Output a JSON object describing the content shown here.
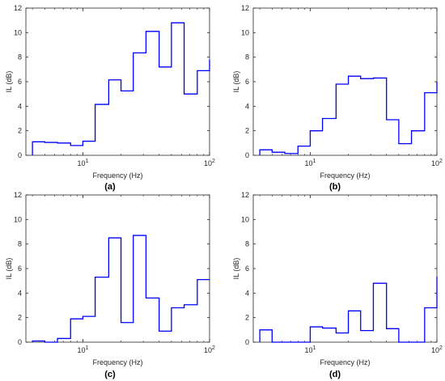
{
  "chart_data": [
    {
      "type": "line",
      "panel_label": "(a)",
      "xlabel": "Frequency (Hz)",
      "ylabel": "IL (dB)",
      "xscale": "log",
      "xlim": [
        3.55,
        100
      ],
      "ylim": [
        0,
        12
      ],
      "yticks": [
        0,
        2,
        4,
        6,
        8,
        10,
        12
      ],
      "xticks": [
        {
          "value": 10,
          "label": "10¹"
        },
        {
          "value": 100,
          "label": "10²"
        }
      ],
      "series": [
        {
          "edges": [
            4,
            5,
            6.3,
            8,
            10,
            12.5,
            16,
            20,
            25,
            31.5,
            40,
            50,
            63,
            80,
            100
          ],
          "values": [
            1.1,
            1.05,
            1.0,
            0.8,
            1.15,
            4.15,
            6.15,
            5.25,
            8.35,
            10.1,
            7.2,
            10.8,
            5.0,
            6.9,
            7.8
          ]
        }
      ]
    },
    {
      "type": "line",
      "panel_label": "(b)",
      "xlabel": "Frequency (Hz)",
      "ylabel": "IL (dB)",
      "xscale": "log",
      "xlim": [
        3.55,
        100
      ],
      "ylim": [
        0,
        12
      ],
      "yticks": [
        0,
        2,
        4,
        6,
        8,
        10,
        12
      ],
      "xticks": [
        {
          "value": 10,
          "label": "10¹"
        },
        {
          "value": 100,
          "label": "10²"
        }
      ],
      "series": [
        {
          "edges": [
            4,
            5,
            6.3,
            8,
            10,
            12.5,
            16,
            20,
            25,
            31.5,
            40,
            50,
            63,
            80,
            100
          ],
          "values": [
            0.45,
            0.25,
            0.15,
            0.75,
            2.0,
            3.0,
            5.8,
            6.45,
            6.25,
            6.3,
            2.9,
            0.95,
            2.0,
            5.1,
            6.0
          ]
        }
      ]
    },
    {
      "type": "line",
      "panel_label": "(c)",
      "xlabel": "Frequency (Hz)",
      "ylabel": "IL (dB)",
      "xscale": "log",
      "xlim": [
        3.55,
        100
      ],
      "ylim": [
        0,
        12
      ],
      "yticks": [
        0,
        2,
        4,
        6,
        8,
        10,
        12
      ],
      "xticks": [
        {
          "value": 10,
          "label": "10¹"
        },
        {
          "value": 100,
          "label": "10²"
        }
      ],
      "series": [
        {
          "edges": [
            4,
            5,
            6.3,
            8,
            10,
            12.5,
            16,
            20,
            25,
            31.5,
            40,
            50,
            63,
            80,
            100
          ],
          "values": [
            0.1,
            0,
            0.3,
            1.9,
            2.1,
            5.3,
            8.5,
            1.6,
            8.7,
            3.6,
            0.9,
            2.8,
            3.05,
            5.1,
            5.1
          ]
        }
      ]
    },
    {
      "type": "line",
      "panel_label": "(d)",
      "xlabel": "Frequency (Hz)",
      "ylabel": "IL (dB)",
      "xscale": "log",
      "xlim": [
        3.55,
        100
      ],
      "ylim": [
        0,
        12
      ],
      "yticks": [
        0,
        2,
        4,
        6,
        8,
        10,
        12
      ],
      "xticks": [
        {
          "value": 10,
          "label": "10¹"
        },
        {
          "value": 100,
          "label": "10²"
        }
      ],
      "series": [
        {
          "edges": [
            4,
            5,
            6.3,
            8,
            10,
            12.5,
            16,
            20,
            25,
            31.5,
            40,
            50,
            63,
            80,
            100
          ],
          "values": [
            1.0,
            0,
            0,
            0,
            1.25,
            1.15,
            0.75,
            2.55,
            0.95,
            4.8,
            1.1,
            0,
            0,
            2.8,
            5.35
          ]
        }
      ]
    }
  ],
  "style": {
    "line_color": "#0000ff",
    "axis_color": "#262626",
    "text_color": "#262626",
    "panel_label_color": "#000000"
  }
}
